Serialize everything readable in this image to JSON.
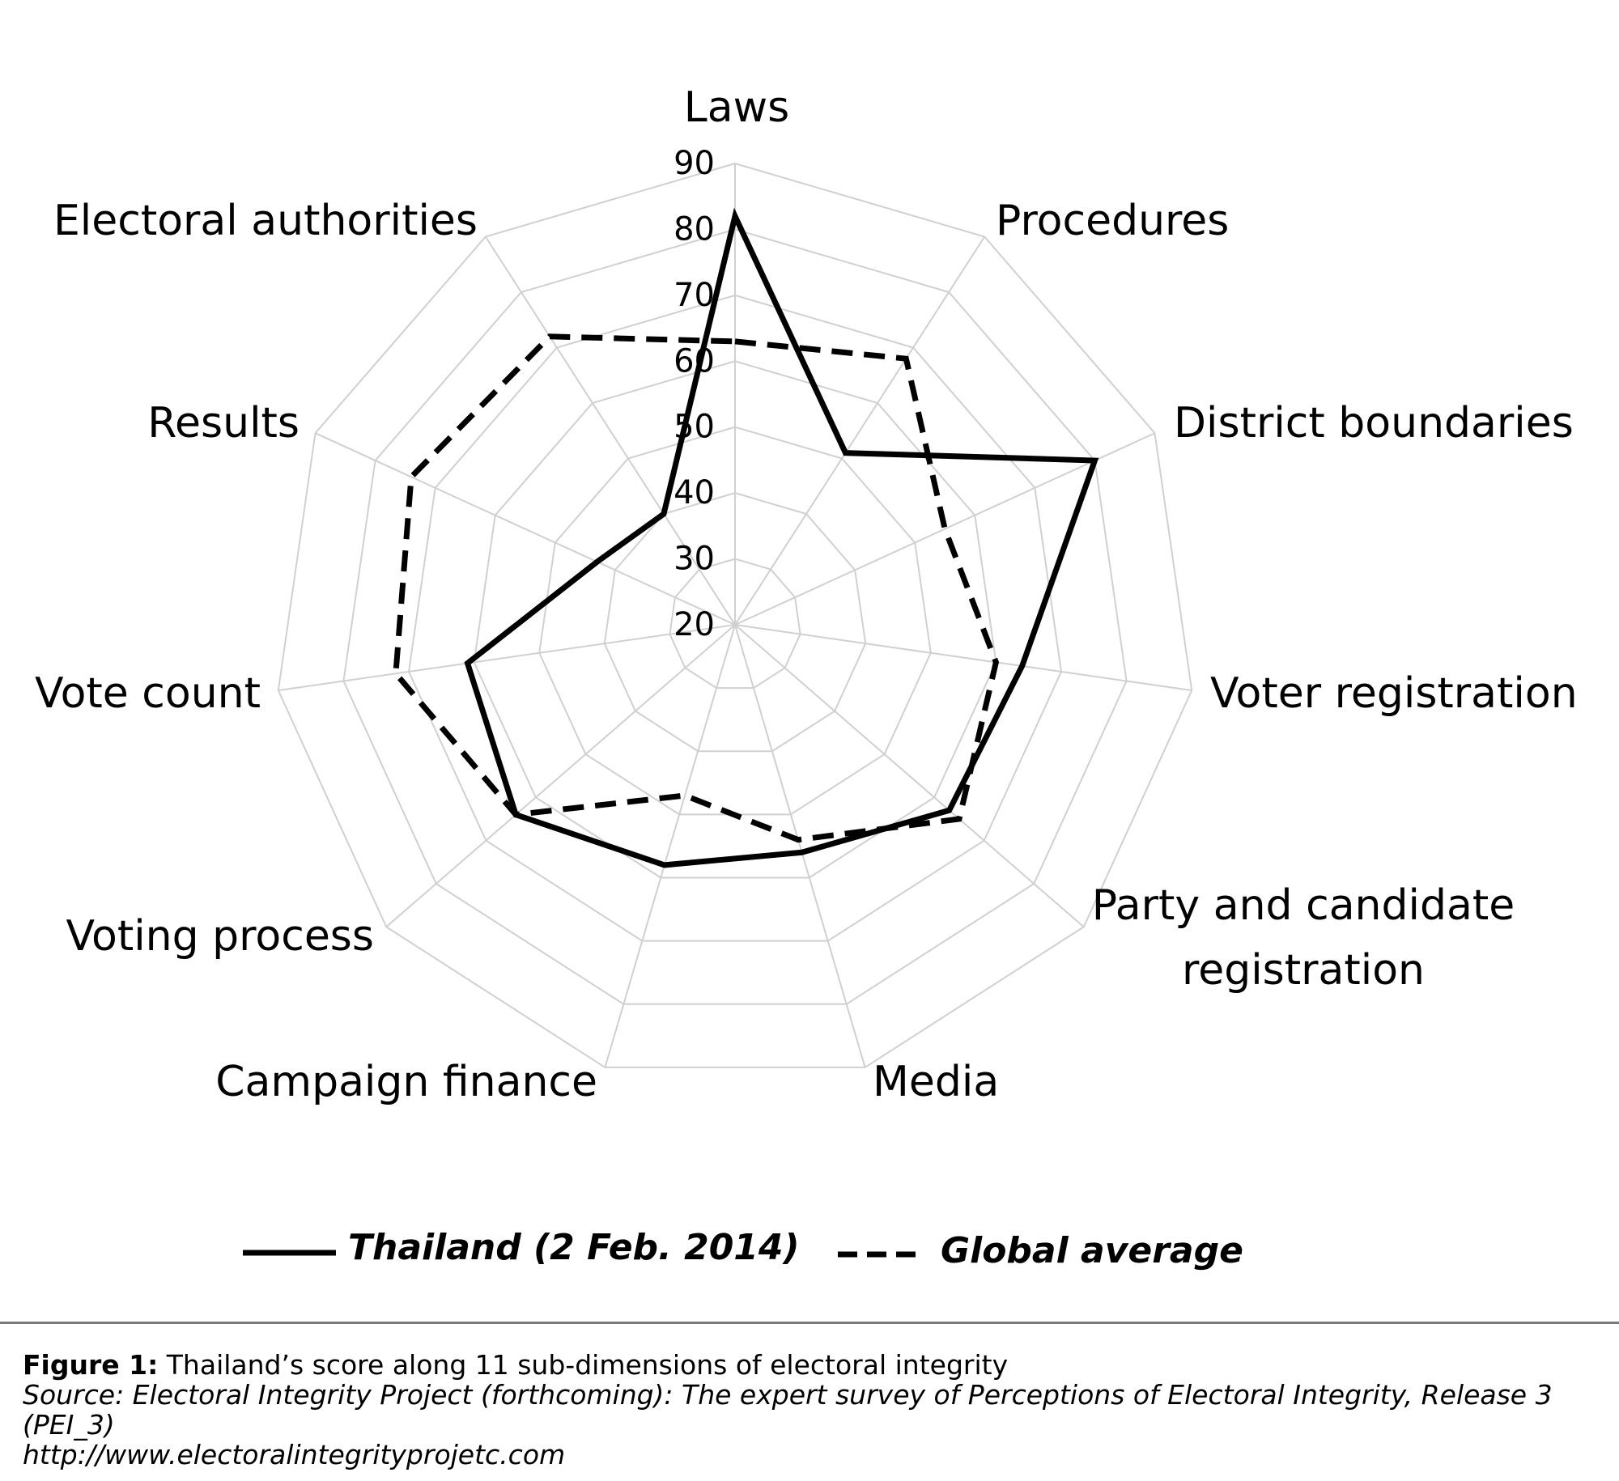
{
  "chart_data": {
    "type": "radar",
    "axes": [
      "Laws",
      "Procedures",
      "District boundaries",
      "Voter registration",
      "Party and candidate registration",
      "Media",
      "Campaign finance",
      "Voting process",
      "Vote count",
      "Results",
      "Electoral authorities"
    ],
    "range": [
      20,
      90
    ],
    "ticks": [
      "20",
      "30",
      "40",
      "50",
      "60",
      "70",
      "80",
      "90"
    ],
    "series": [
      {
        "name": "Thailand (2 Feb. 2014)",
        "style": "solid",
        "values": [
          82,
          51,
          80,
          64,
          63,
          56,
          58,
          64,
          61,
          43,
          40
        ]
      },
      {
        "name": "Global average",
        "style": "dashed",
        "values": [
          63,
          68,
          55,
          60,
          65,
          54,
          47,
          64,
          72,
          74,
          72
        ]
      }
    ]
  },
  "labels": {
    "Laws": [
      "Laws"
    ],
    "Procedures": [
      "Procedures"
    ],
    "District boundaries": [
      "District boundaries"
    ],
    "Voter registration": [
      "Voter registration"
    ],
    "Party and candidate registration": [
      "Party and candidate",
      "registration"
    ],
    "Media": [
      "Media"
    ],
    "Campaign finance": [
      "Campaign finance"
    ],
    "Voting process": [
      "Voting process"
    ],
    "Vote count": [
      "Vote count"
    ],
    "Results": [
      "Results"
    ],
    "Electoral authorities": [
      "Electoral authorities"
    ]
  },
  "legend": {
    "thailand": "Thailand (2 Feb. 2014)",
    "global": "Global average"
  },
  "caption": {
    "figure_label": "Figure 1:",
    "figure_text": " Thailand’s score along 11 sub-dimensions of electoral integrity",
    "source": "Source: Electoral Integrity Project (forthcoming): The expert survey of Perceptions of Electoral Integrity, Release 3 (PEI_3)",
    "url": "http://www.electoralintegrityprojetc.com"
  }
}
